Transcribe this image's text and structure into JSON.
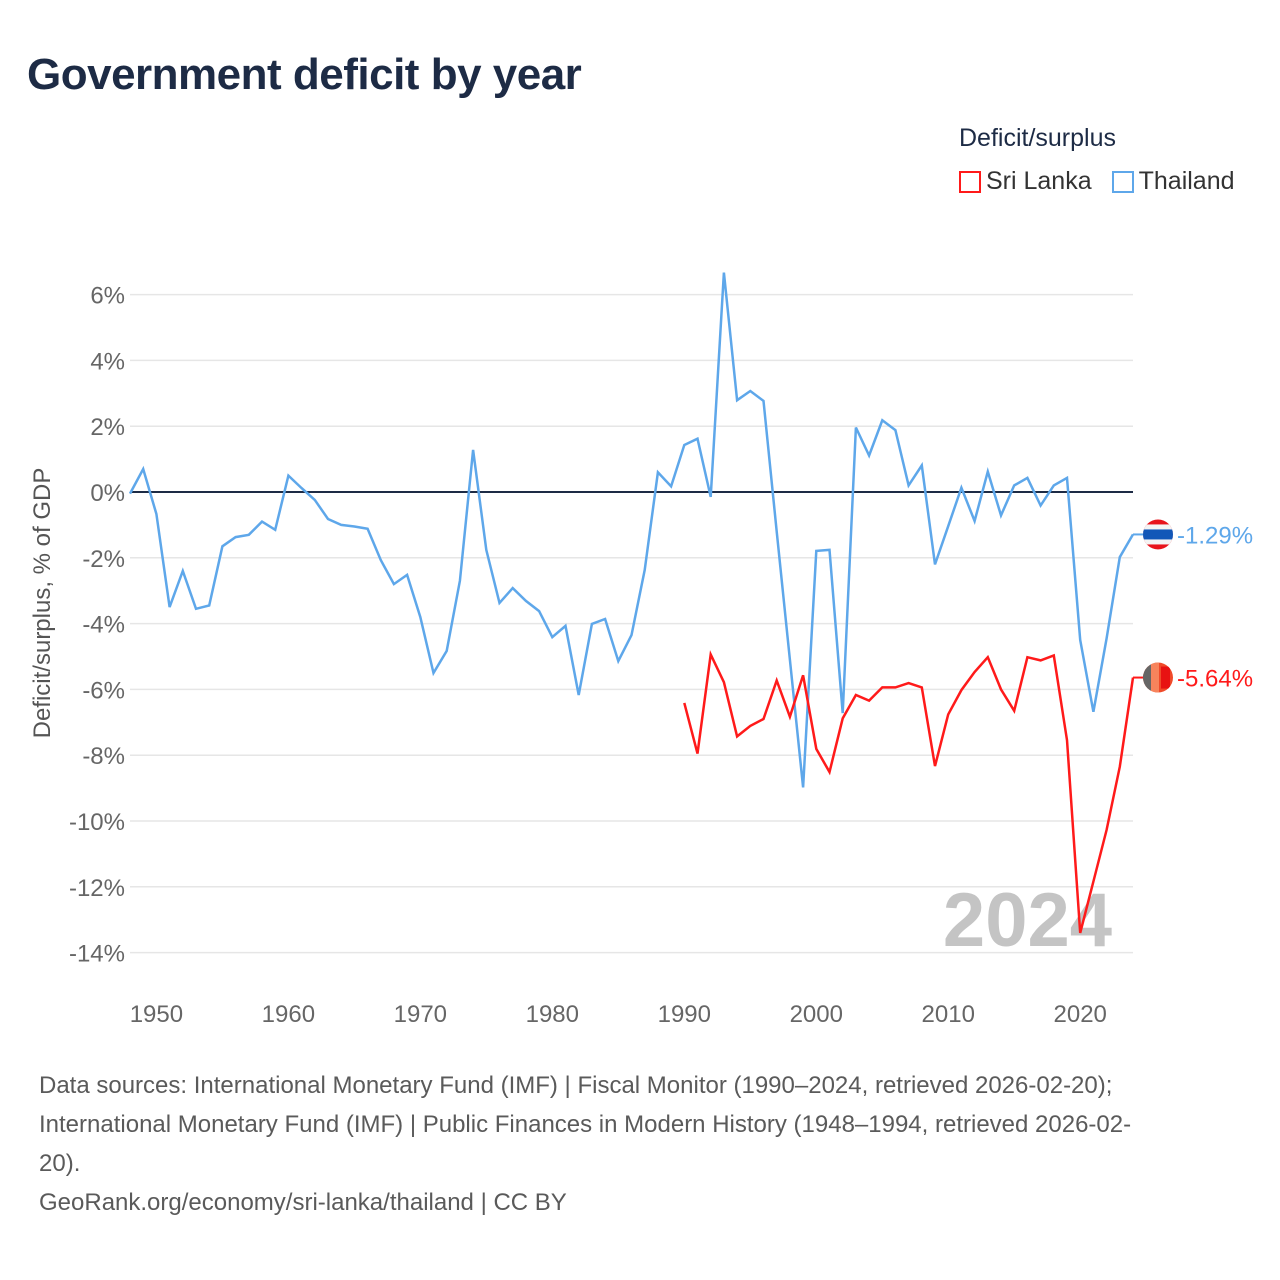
{
  "title": "Government deficit by year",
  "legend": {
    "title": "Deficit/surplus",
    "items": [
      {
        "label": "Sri Lanka",
        "color": "#ff1a1a"
      },
      {
        "label": "Thailand",
        "color": "#5ea7ea"
      }
    ]
  },
  "footer": {
    "line1": "Data sources: International Monetary Fund (IMF) | Fiscal Monitor (1990–2024, retrieved 2026-02-20);",
    "line2": "International Monetary Fund (IMF) | Public Finances in Modern History (1948–1994, retrieved 2026-02-",
    "line3": "20).",
    "line4": "GeoRank.org/economy/sri-lanka/thailand | CC BY"
  },
  "chart_data": {
    "type": "line",
    "title": "Government deficit by year",
    "ylabel": "Deficit/surplus, % of GDP",
    "xlabel": "",
    "xlim": [
      1948,
      2024
    ],
    "ylim": [
      -15,
      6.7
    ],
    "yticks": [
      6,
      4,
      2,
      0,
      -2,
      -4,
      -6,
      -8,
      -10,
      -12,
      -14
    ],
    "ytick_labels": [
      "6%",
      "4%",
      "2%",
      "0%",
      "-2%",
      "-4%",
      "-6%",
      "-8%",
      "-10%",
      "-12%",
      "-14%"
    ],
    "xticks": [
      1950,
      1960,
      1970,
      1980,
      1990,
      2000,
      2010,
      2020
    ],
    "xtick_labels": [
      "1950",
      "1960",
      "1970",
      "1980",
      "1990",
      "2000",
      "2010",
      "2020"
    ],
    "year_watermark": "2024",
    "grid": true,
    "legend_position": "top-right",
    "series": [
      {
        "name": "Thailand",
        "color": "#5ea7ea",
        "end_label": "-1.29%",
        "start_year": 1948,
        "values": [
          -0.05,
          0.7,
          -0.67,
          -3.5,
          -2.4,
          -3.55,
          -3.45,
          -1.65,
          -1.37,
          -1.3,
          -0.9,
          -1.15,
          0.5,
          0.12,
          -0.24,
          -0.82,
          -1.0,
          -1.05,
          -1.12,
          -2.07,
          -2.8,
          -2.52,
          -3.8,
          -5.5,
          -4.83,
          -2.7,
          1.28,
          -1.76,
          -3.37,
          -2.92,
          -3.31,
          -3.62,
          -4.41,
          -4.07,
          -6.17,
          -4.01,
          -3.86,
          -5.14,
          -4.35,
          -2.37,
          0.6,
          0.17,
          1.43,
          1.62,
          -0.15,
          6.67,
          2.79,
          3.07,
          2.77,
          -1.2,
          -5.1,
          -8.98,
          -1.79,
          -1.76,
          -6.72,
          1.96,
          1.11,
          2.18,
          1.88,
          0.2,
          0.81,
          -2.2,
          -1.04,
          0.13,
          -0.88,
          0.62,
          -0.71,
          0.2,
          0.43,
          -0.41,
          0.2,
          0.43,
          -4.5,
          -6.68,
          -4.45,
          -1.98,
          -1.29
        ]
      },
      {
        "name": "Sri Lanka",
        "color": "#ff1a1a",
        "end_label": "-5.64%",
        "start_year": 1990,
        "values": [
          -6.41,
          -7.95,
          -4.94,
          -5.78,
          -7.43,
          -7.11,
          -6.9,
          -5.73,
          -6.83,
          -5.57,
          -7.81,
          -8.51,
          -6.88,
          -6.17,
          -6.34,
          -5.94,
          -5.94,
          -5.81,
          -5.94,
          -8.33,
          -6.76,
          -6.02,
          -5.47,
          -5.02,
          -6.0,
          -6.65,
          -5.02,
          -5.12,
          -4.97,
          -7.54,
          -13.4,
          -11.84,
          -10.27,
          -8.35,
          -5.64
        ]
      }
    ]
  }
}
